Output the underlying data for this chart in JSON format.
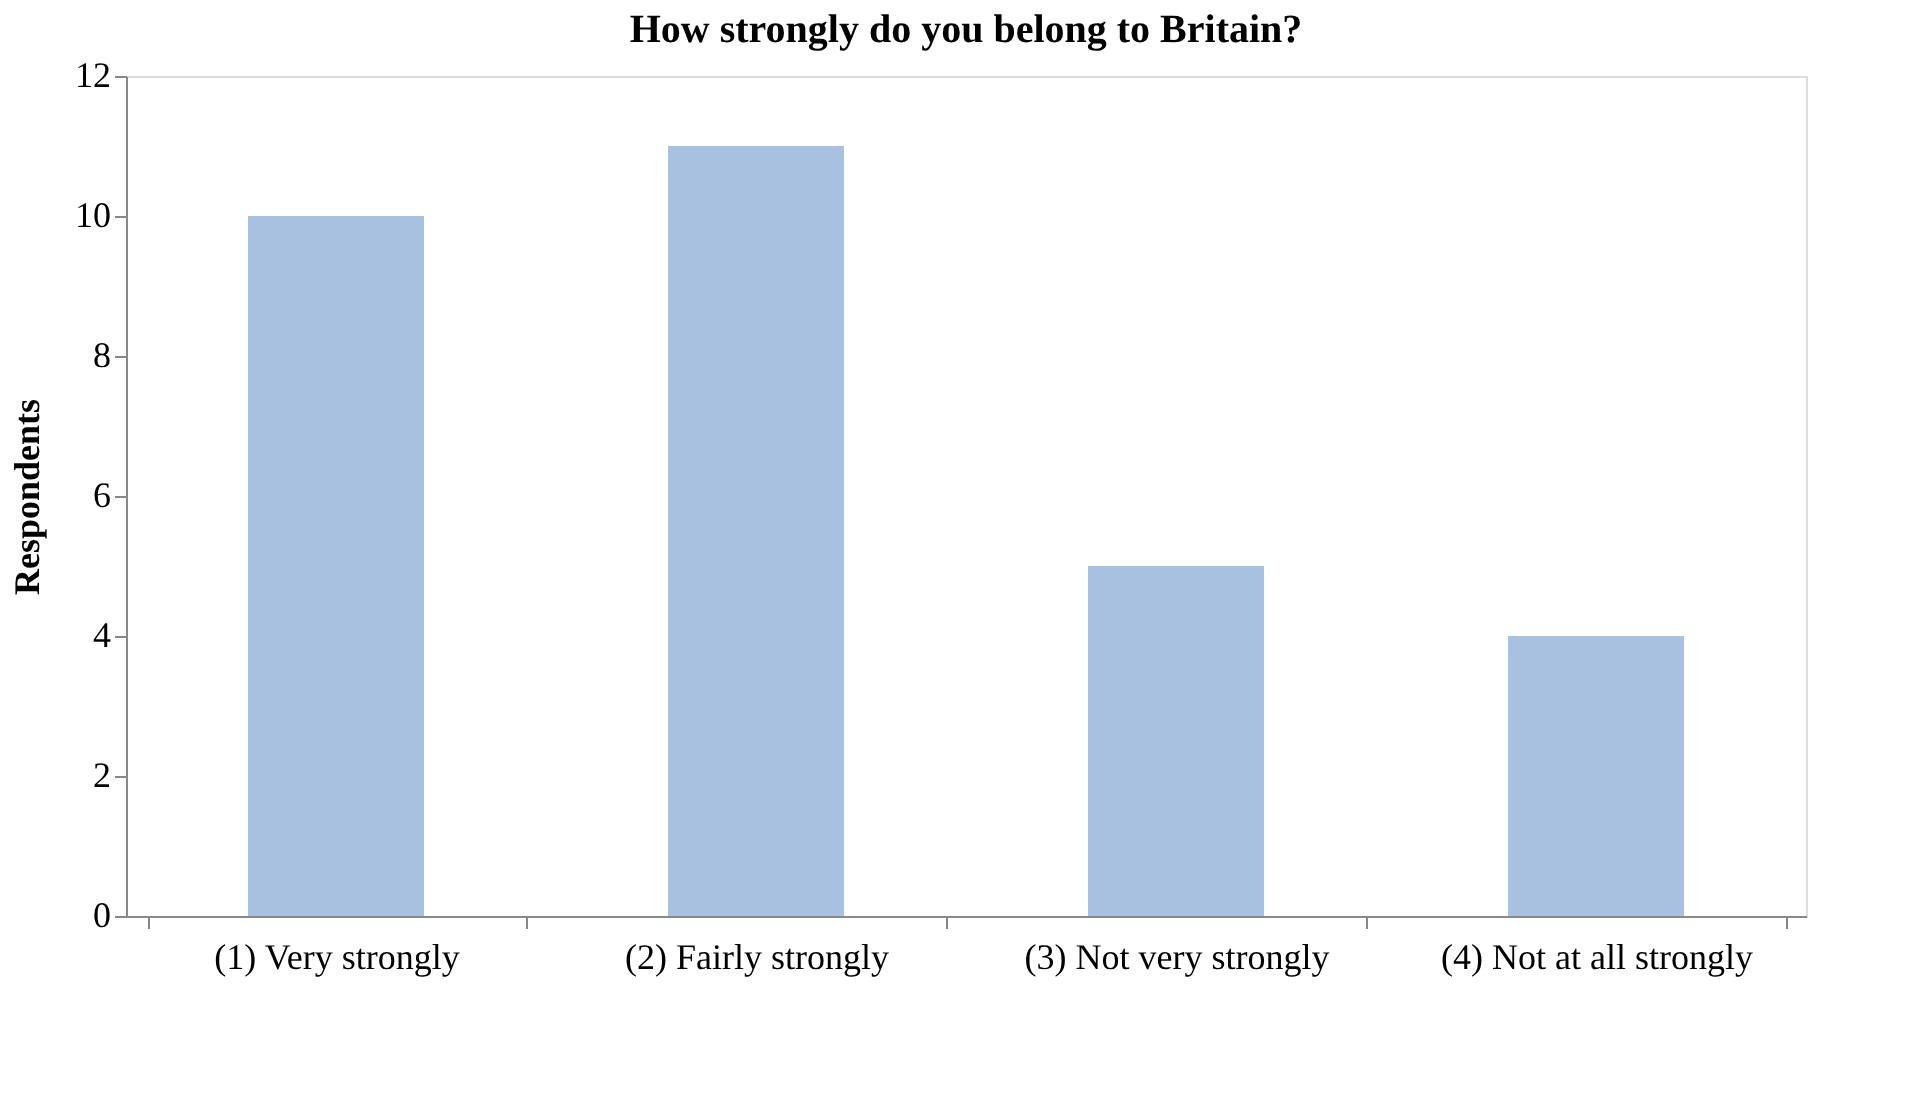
{
  "chart_data": {
    "type": "bar",
    "title": "How strongly do you belong to Britain?",
    "ylabel": "Respondents",
    "categories": [
      "(1) Very strongly",
      "(2) Fairly strongly",
      "(3) Not very strongly",
      "(4) Not at all strongly"
    ],
    "values": [
      10,
      11,
      5,
      4
    ],
    "color": "#a8c1e0",
    "ylim": [
      0,
      12
    ],
    "yticks": [
      0,
      2,
      4,
      6,
      8,
      10,
      12
    ],
    "grid": false
  }
}
